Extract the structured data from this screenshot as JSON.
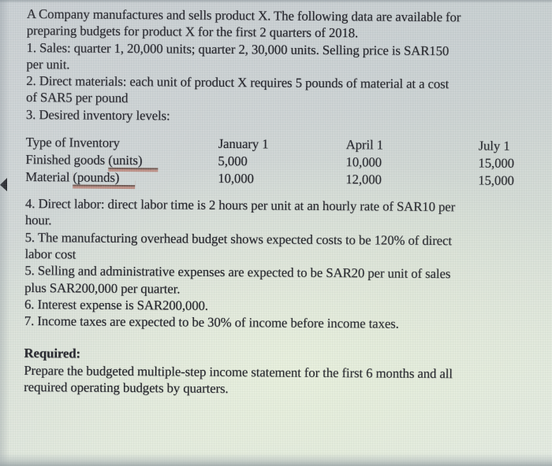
{
  "document": {
    "intro_lines": [
      "A Company manufactures and sells product X. The following data are available for",
      "preparing budgets for product X for the first 2 quarters of 2018.",
      "1. Sales: quarter 1, 20,000 units; quarter 2, 30,000 units. Selling price is SAR150",
      "per unit.",
      "2. Direct materials: each unit of product X requires 5 pounds of material at a cost",
      "of SAR5 per pound",
      "3. Desired inventory levels:"
    ],
    "inventory_table": {
      "headers": [
        "Type of Inventory",
        "January 1",
        "April 1",
        "July 1"
      ],
      "rows": [
        {
          "label_prefix": "Finished goods ",
          "label_underlined": "(units)",
          "values": [
            "5,000",
            "10,000",
            "15,000"
          ]
        },
        {
          "label_prefix": "Material ",
          "label_underlined": "(pounds)",
          "values": [
            "10,000",
            "12,000",
            "15,000"
          ]
        }
      ]
    },
    "mid_lines": [
      "4. Direct labor: direct labor time is 2 hours per unit at an hourly rate of SAR10 per",
      "hour.",
      "5. The manufacturing overhead budget shows expected costs to be 120% of direct",
      "labor cost",
      "5. Selling and administrative expenses are expected to be SAR20 per unit of sales",
      "plus SAR200,000 per quarter.",
      "6. Interest expense is SAR200,000.",
      "7. Income taxes are expected to be 30% of income before income taxes."
    ],
    "required": {
      "heading": "Required:",
      "lines": [
        "Prepare the budgeted multiple-step income statement for the first 6 months and all",
        "required operating budgets by quarters."
      ]
    }
  },
  "decorations": {
    "left_marker_icon": "left-pointing-triangle"
  },
  "colors": {
    "text": "#1b1b22",
    "underline_dark": "#6e564f",
    "underline_accent": "#b26c5e",
    "background_top": "#c7cdd1",
    "background_bottom": "#e0e7e0",
    "bottom_strip": "#9aa2a5"
  }
}
